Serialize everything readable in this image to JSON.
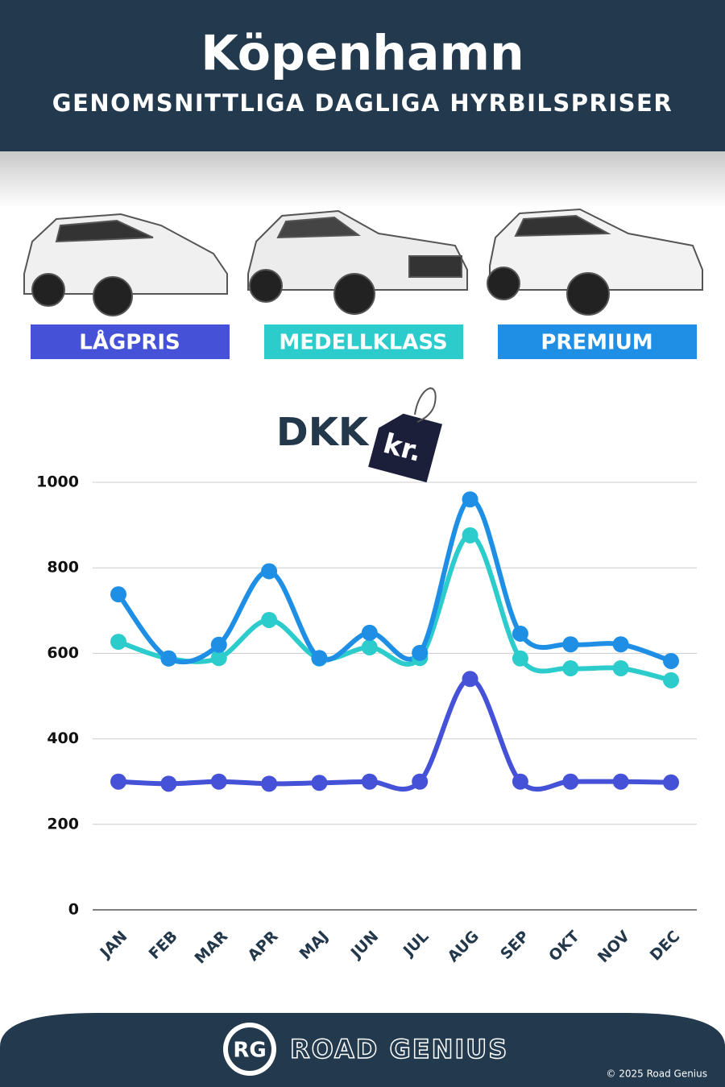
{
  "chart_data": {
    "type": "line",
    "title": "Köpenhamn",
    "subtitle": "GENOMSNITTLIGA DAGLIGA HYRBILSPRISER",
    "unit": "DKK",
    "unit_tag": "kr.",
    "categories": [
      "JAN",
      "FEB",
      "MAR",
      "APR",
      "MAJ",
      "JUN",
      "JUL",
      "AUG",
      "SEP",
      "OKT",
      "NOV",
      "DEC"
    ],
    "series": [
      {
        "name": "LÅGPRIS",
        "color": "#4552d8",
        "values": [
          300,
          295,
          300,
          295,
          297,
          300,
          300,
          540,
          300,
          300,
          300,
          298
        ]
      },
      {
        "name": "MEDELLKLASS",
        "color": "#2ccccc",
        "values": [
          627,
          588,
          589,
          678,
          588,
          614,
          589,
          876,
          588,
          565,
          565,
          537
        ]
      },
      {
        "name": "PREMIUM",
        "color": "#1f8fe6",
        "values": [
          738,
          588,
          620,
          792,
          589,
          648,
          601,
          960,
          646,
          621,
          621,
          582
        ]
      }
    ],
    "ylim": [
      0,
      1000
    ],
    "yticks": [
      0,
      200,
      400,
      600,
      800,
      1000
    ],
    "grid": true
  },
  "footer": {
    "logo": "RG",
    "brand": "ROAD GENIUS",
    "copyright": "© 2025 Road Genius"
  }
}
